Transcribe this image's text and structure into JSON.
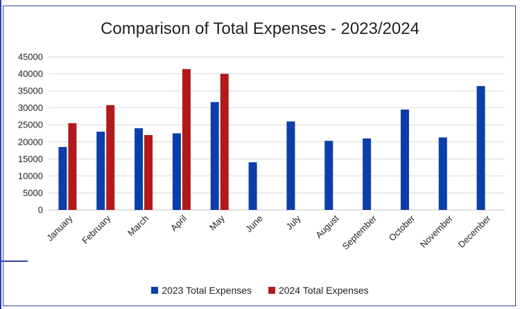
{
  "chart_data": {
    "type": "bar",
    "title": "Comparison of Total Expenses - 2023/2024",
    "categories": [
      "January",
      "February",
      "March",
      "April",
      "May",
      "June",
      "July",
      "August",
      "September",
      "October",
      "November",
      "December"
    ],
    "series": [
      {
        "name": "2023 Total Expenses",
        "color": "#0b3ea8",
        "values": [
          18500,
          23000,
          24000,
          22500,
          31700,
          14000,
          26000,
          20300,
          21000,
          29500,
          21300,
          36400
        ]
      },
      {
        "name": "2024 Total Expenses",
        "color": "#b01a1a",
        "values": [
          25500,
          30800,
          22000,
          41400,
          40000,
          null,
          null,
          null,
          null,
          null,
          null,
          null
        ]
      }
    ],
    "ylim": [
      0,
      45000
    ],
    "yticks": [
      "0",
      "5000",
      "10000",
      "15000",
      "20000",
      "25000",
      "30000",
      "35000",
      "40000",
      "45000"
    ],
    "grid": true,
    "legend_position": "bottom"
  }
}
